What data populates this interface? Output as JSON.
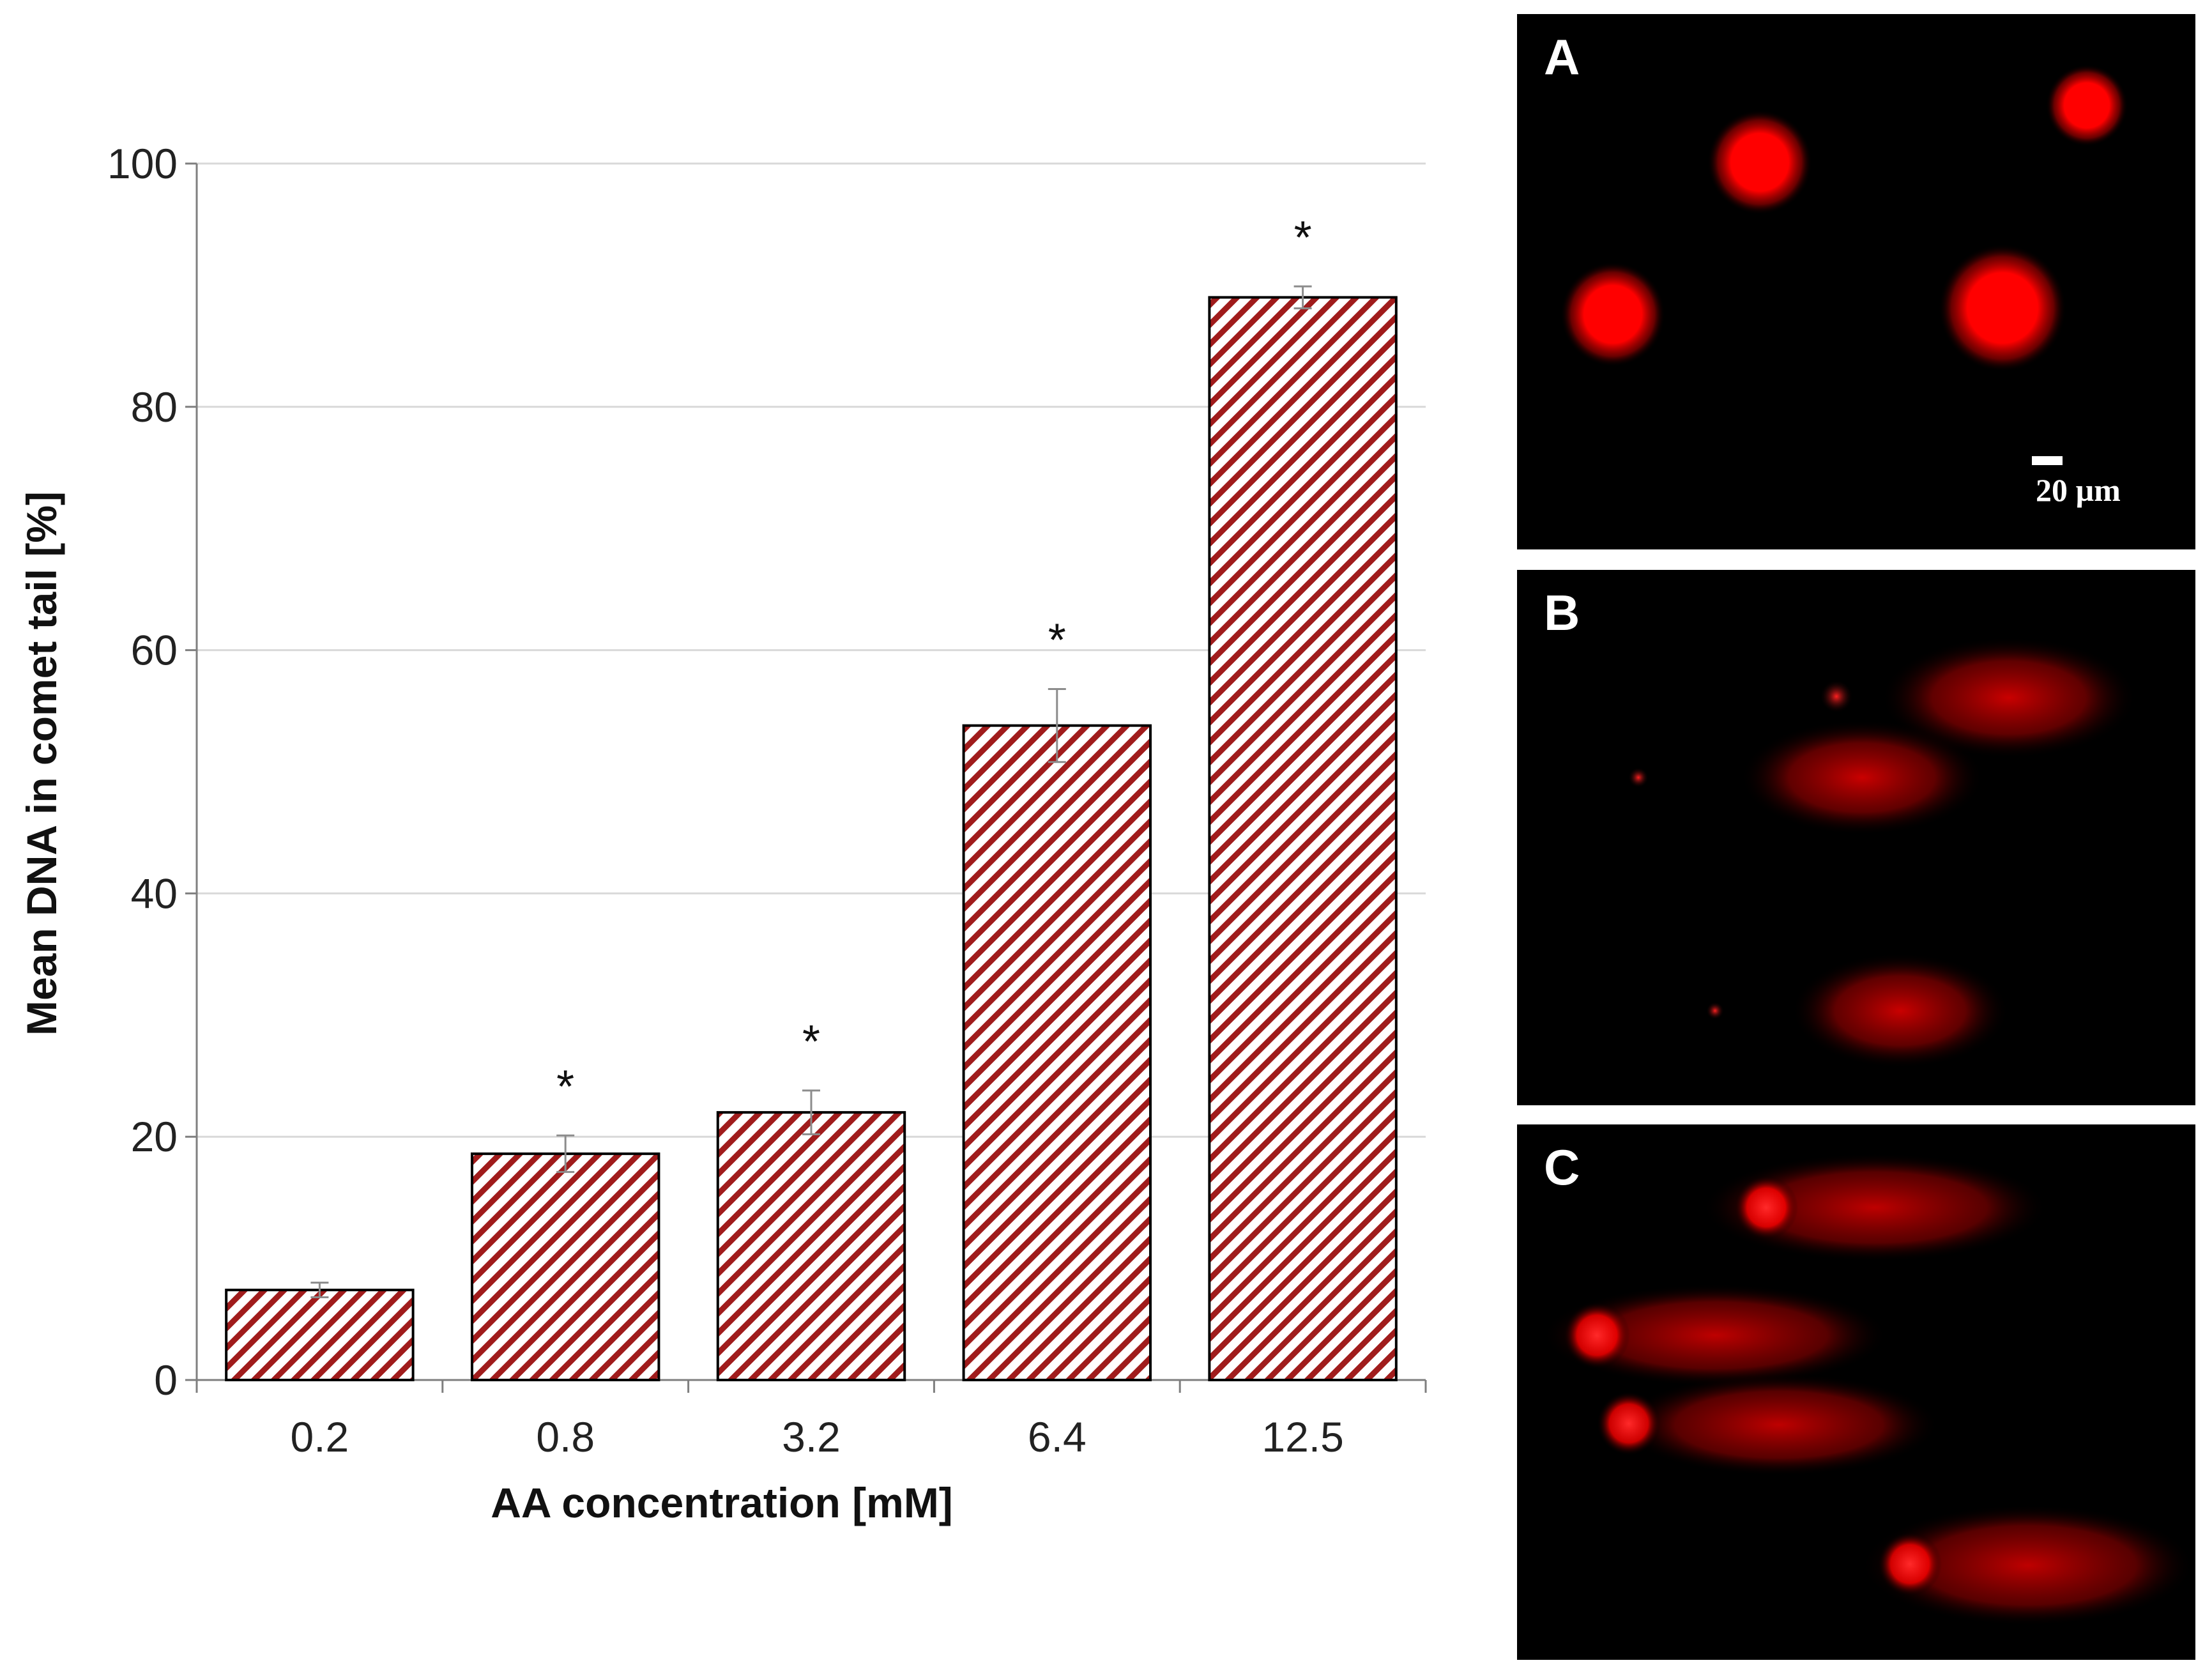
{
  "chart_data": {
    "type": "bar",
    "categories": [
      "0.2",
      "0.8",
      "3.2",
      "6.4",
      "12.5"
    ],
    "values": [
      7.4,
      18.6,
      22.0,
      53.8,
      89.0
    ],
    "errors": [
      0.6,
      1.5,
      1.8,
      3.0,
      0.9
    ],
    "significance": [
      "",
      "*",
      "*",
      "*",
      "*"
    ],
    "xlabel": "AA concentration [mM]",
    "ylabel": "Mean DNA in comet tail [%]",
    "ylim": [
      0,
      100
    ],
    "yticks": [
      0,
      20,
      40,
      60,
      80,
      100
    ],
    "grid": true,
    "bar_fill": "diagonal hatch",
    "hatch_color": "#a01c1c"
  },
  "panels": [
    {
      "letter": "A",
      "description": "undamaged nuclei"
    },
    {
      "letter": "B",
      "description": "comets"
    },
    {
      "letter": "C",
      "description": "comets"
    }
  ],
  "scale_bar_label": "20 µm",
  "colors": {
    "comet": "#ff0000",
    "background": "#000000",
    "grid": "#d9d9d9",
    "axis": "#7f7f7f"
  }
}
